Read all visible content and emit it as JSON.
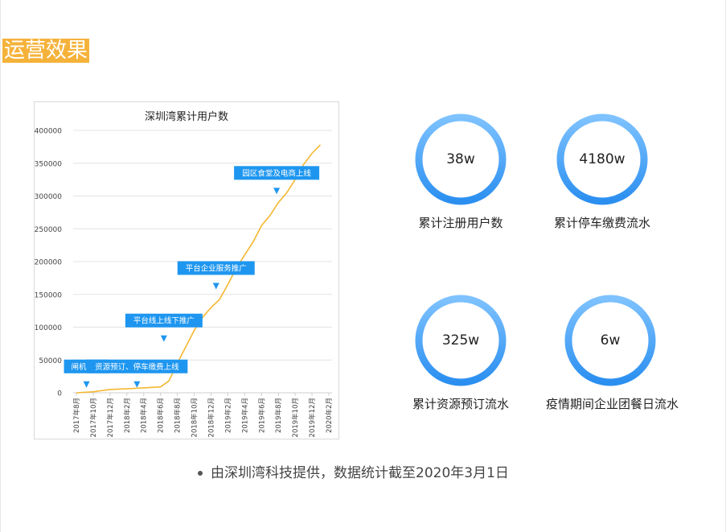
{
  "section_title": "运营效果",
  "chart_data": {
    "type": "line",
    "title": "深圳湾累计用户数",
    "xlabel": "",
    "ylabel": "",
    "ylim": [
      0,
      400000
    ],
    "yticks": [
      "0",
      "50000",
      "100000",
      "150000",
      "200000",
      "250000",
      "300000",
      "350000",
      "400000"
    ],
    "categories": [
      "2017年8月",
      "2017年10月",
      "2017年12月",
      "2018年2月",
      "2018年4月",
      "2018年6月",
      "2018年8月",
      "2018年10月",
      "2018年12月",
      "2019年2月",
      "2019年4月",
      "2019年6月",
      "2019年8月",
      "2019年10月",
      "2019年12月",
      "2020年2月"
    ],
    "grid": true,
    "series": [
      {
        "color": "#f5b731",
        "x": [
          0,
          1,
          2,
          3,
          4,
          5,
          5.5,
          6,
          6.5,
          7,
          7.5,
          8,
          8.5,
          9,
          9.5,
          10,
          10.5,
          11,
          11.5,
          12,
          12.5,
          13,
          13.5,
          14,
          14.5
        ],
        "values": [
          0,
          1500,
          5000,
          6000,
          7500,
          9000,
          18000,
          45000,
          70000,
          95000,
          115000,
          130000,
          142000,
          165000,
          190000,
          210000,
          230000,
          255000,
          270000,
          290000,
          305000,
          325000,
          348000,
          365000,
          378000
        ]
      }
    ],
    "annotations": [
      {
        "text": "闸机运行",
        "x": 0.6,
        "y": 15000
      },
      {
        "text": "资源预订、停车缴费上线",
        "x": 3.6,
        "y": 15000
      },
      {
        "text": "平台线上线下推广",
        "x": 5.2,
        "y": 85000
      },
      {
        "text": "平台企业服务推广",
        "x": 8.3,
        "y": 165000
      },
      {
        "text": "园区食堂及电商上线",
        "x": 11.9,
        "y": 310000
      }
    ]
  },
  "metrics": [
    {
      "value": "38w",
      "label": "累计注册用户数"
    },
    {
      "value": "4180w",
      "label": "累计停车缴费流水"
    },
    {
      "value": "325w",
      "label": "累计资源预订流水"
    },
    {
      "value": "6w",
      "label": "疫情期间企业团餐日流水"
    }
  ],
  "footnote": "由深圳湾科技提供，数据统计截至2020年3月1日",
  "colors": {
    "heading_bg": "#f5b23a",
    "line": "#f5b731",
    "callout": "#1e96f0",
    "ring_outer": "#2b8ff0",
    "ring_inner": "#7ec2ff"
  }
}
